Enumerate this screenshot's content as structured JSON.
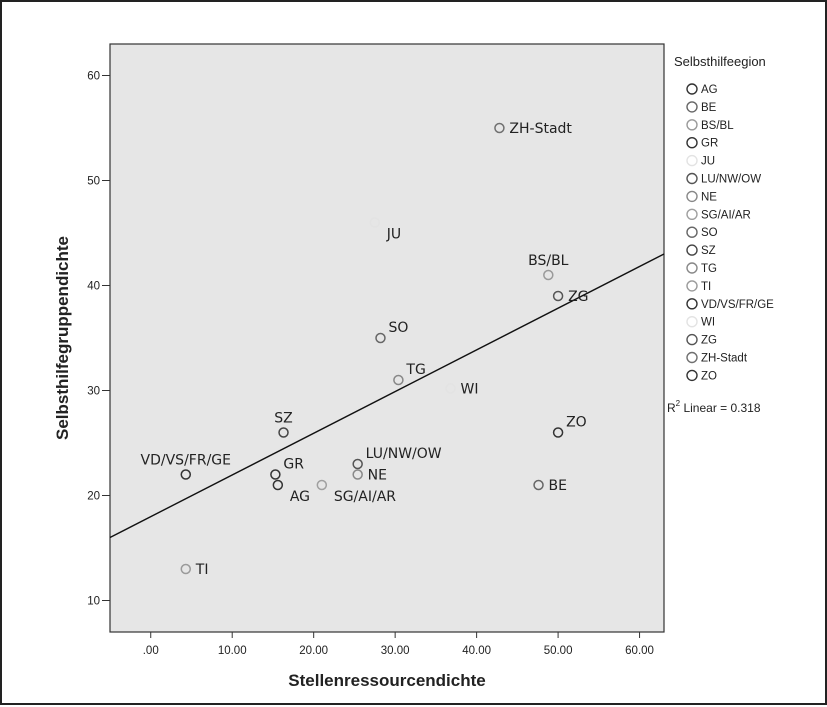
{
  "chart_data": {
    "type": "scatter",
    "xlabel": "Stellenressourcendichte",
    "ylabel": "Selbsthilfegruppendichte",
    "xlim": [
      -5,
      63
    ],
    "ylim": [
      7,
      63
    ],
    "x_ticks": [
      ".00",
      "10.00",
      "20.00",
      "30.00",
      "40.00",
      "50.00",
      "60.00"
    ],
    "x_tick_values": [
      0,
      10,
      20,
      30,
      40,
      50,
      60
    ],
    "y_ticks": [
      "10",
      "20",
      "30",
      "40",
      "50",
      "60"
    ],
    "y_tick_values": [
      10,
      20,
      30,
      40,
      50,
      60
    ],
    "grid": false,
    "background": "#e6e6e6",
    "legend": {
      "title": "Selbsthilfeegion",
      "placement": "right",
      "entries": [
        "AG",
        "BE",
        "BS/BL",
        "GR",
        "JU",
        "LU/NW/OW",
        "NE",
        "SG/AI/AR",
        "SO",
        "SZ",
        "TG",
        "TI",
        "VD/VS/FR/GE",
        "WI",
        "ZG",
        "ZH-Stadt",
        "ZO"
      ]
    },
    "points": [
      {
        "label": "ZH-Stadt",
        "x": 42.8,
        "y": 55,
        "color": "#707070",
        "label_pos": "right"
      },
      {
        "label": "JU",
        "x": 27.5,
        "y": 46,
        "color": "#e3e3e3",
        "label_pos": "below-right"
      },
      {
        "label": "BS/BL",
        "x": 48.8,
        "y": 41,
        "color": "#9a9a9a",
        "label_pos": "above"
      },
      {
        "label": "ZG",
        "x": 50.0,
        "y": 39,
        "color": "#555555",
        "label_pos": "right"
      },
      {
        "label": "SO",
        "x": 28.2,
        "y": 35,
        "color": "#666666",
        "label_pos": "above-right"
      },
      {
        "label": "TG",
        "x": 30.4,
        "y": 31,
        "color": "#888888",
        "label_pos": "above-right"
      },
      {
        "label": "WI",
        "x": 36.8,
        "y": 30.2,
        "color": "#e3e3e3",
        "label_pos": "right"
      },
      {
        "label": "SZ",
        "x": 16.3,
        "y": 26,
        "color": "#444444",
        "label_pos": "above"
      },
      {
        "label": "ZO",
        "x": 50.0,
        "y": 26,
        "color": "#333333",
        "label_pos": "above-right"
      },
      {
        "label": "VD/VS/FR/GE",
        "x": 4.3,
        "y": 22,
        "color": "#333333",
        "label_pos": "above"
      },
      {
        "label": "GR",
        "x": 15.3,
        "y": 22,
        "color": "#333333",
        "label_pos": "above-right"
      },
      {
        "label": "AG",
        "x": 15.6,
        "y": 21,
        "color": "#333333",
        "label_pos": "below-right"
      },
      {
        "label": "LU/NW/OW",
        "x": 25.4,
        "y": 23,
        "color": "#555555",
        "label_pos": "above-right"
      },
      {
        "label": "NE",
        "x": 25.4,
        "y": 22,
        "color": "#888888",
        "label_pos": "right"
      },
      {
        "label": "SG/AI/AR",
        "x": 21.0,
        "y": 21,
        "color": "#a0a0a0",
        "label_pos": "below-right"
      },
      {
        "label": "BE",
        "x": 47.6,
        "y": 21,
        "color": "#666666",
        "label_pos": "right"
      },
      {
        "label": "TI",
        "x": 4.3,
        "y": 13,
        "color": "#9a9a9a",
        "label_pos": "right"
      }
    ],
    "fit_line": {
      "x0": -5,
      "y0": 16.0,
      "x1": 63,
      "y1": 43.0,
      "label_prefix": "R",
      "label_sup": "2",
      "label_suffix": " Linear = 0.318"
    }
  }
}
